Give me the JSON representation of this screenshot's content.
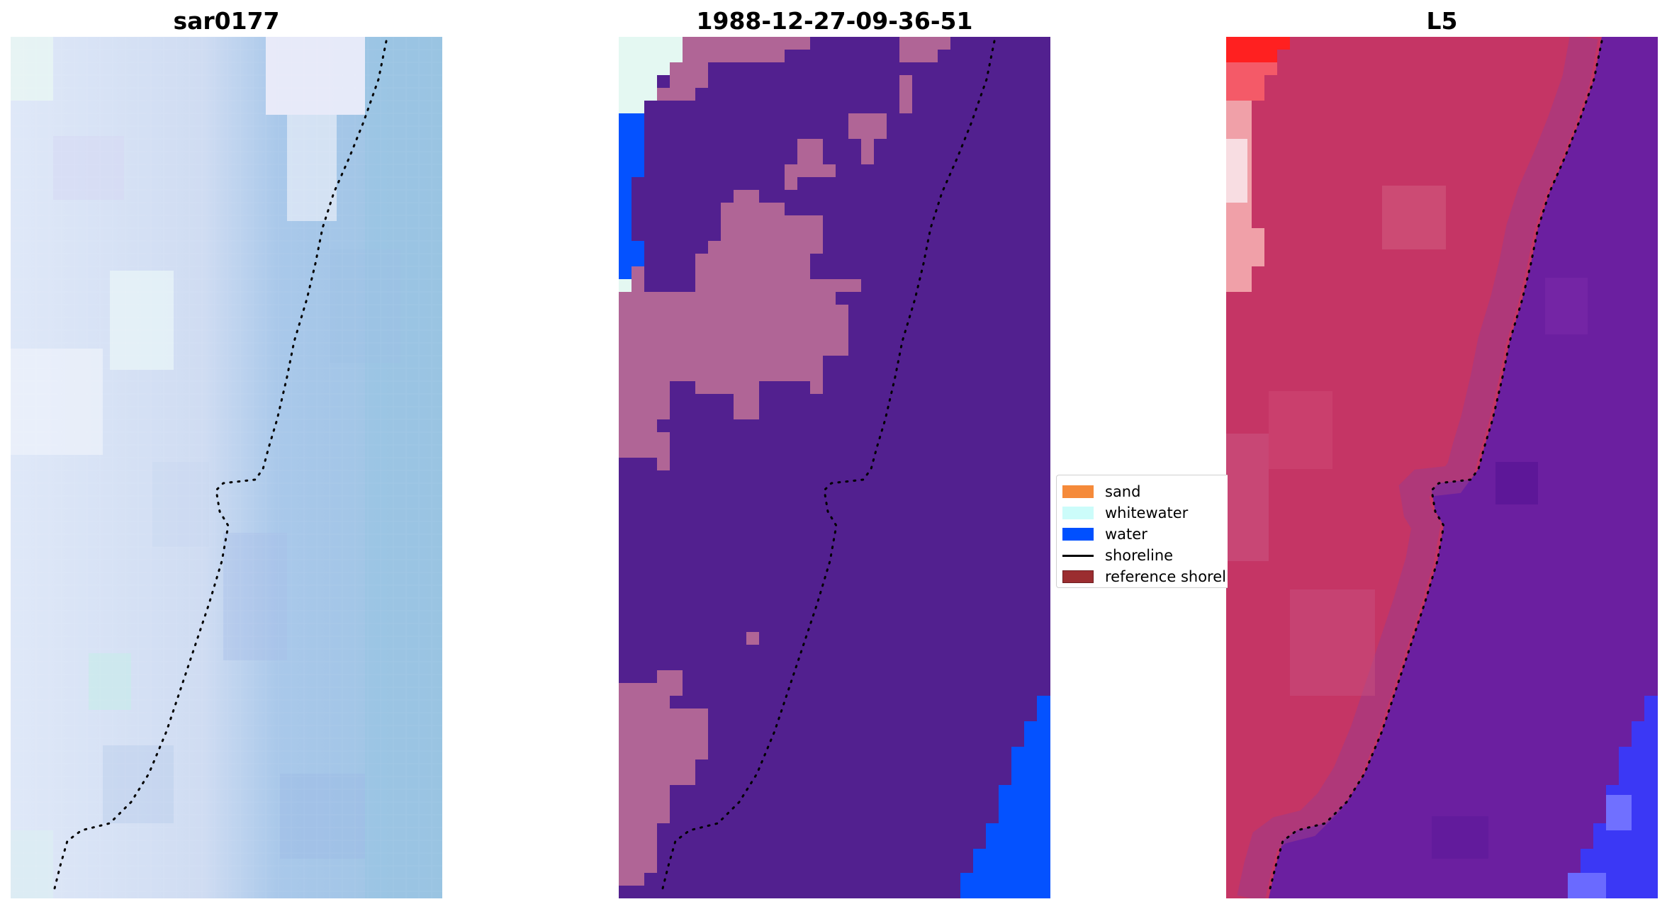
{
  "panels": [
    {
      "id": "sar",
      "title": "sar0177"
    },
    {
      "id": "classified",
      "title": "1988-12-27-09-36-51"
    },
    {
      "id": "landsat",
      "title": "L5"
    }
  ],
  "legend": {
    "items": [
      {
        "label": "sand",
        "kind": "patch",
        "color": "#f58a3a"
      },
      {
        "label": "whitewater",
        "kind": "patch",
        "color": "#ccfcfa"
      },
      {
        "label": "water",
        "kind": "patch",
        "color": "#0050ff"
      },
      {
        "label": "shoreline",
        "kind": "line",
        "color": "#000000"
      },
      {
        "label": "reference shoreline",
        "kind": "patch",
        "color": "#9b2d30"
      }
    ]
  },
  "colors": {
    "sar_land": "#d3def4",
    "sar_sea": "#9bc4e4",
    "class_background": "#52208f",
    "class_sand_blend": "#b06596",
    "class_water": "#0452ff",
    "class_whitewater": "#e4f8f2",
    "l5_land": "#c53565",
    "l5_sea": "#6b1fa0",
    "l5_bright": "#ff2020",
    "l5_blue": "#3b38f5",
    "shoreline": "#000000"
  }
}
